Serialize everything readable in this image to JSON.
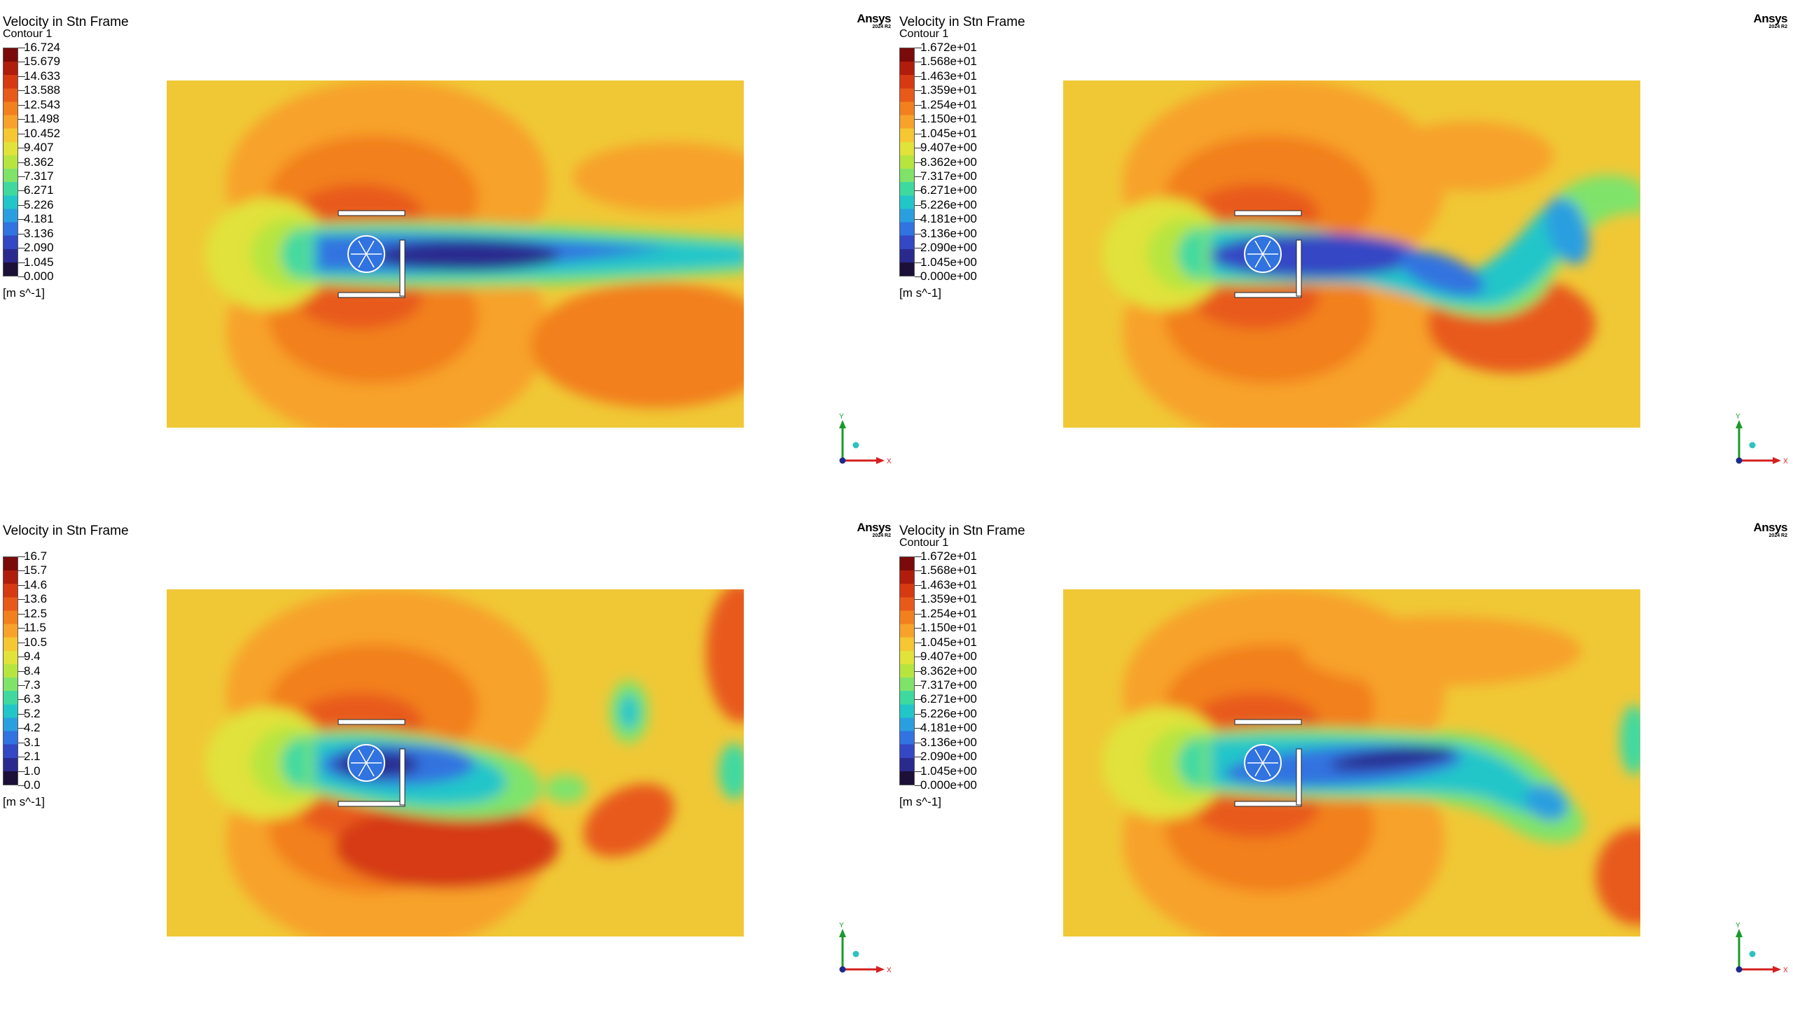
{
  "panels": [
    {
      "title": "Velocity in Stn Frame",
      "subtitle": "Contour 1",
      "legend_labels": [
        "16.724",
        "15.679",
        "14.633",
        "13.588",
        "12.543",
        "11.498",
        "10.452",
        "9.407",
        "8.362",
        "7.317",
        "6.271",
        "5.226",
        "4.181",
        "3.136",
        "2.090",
        "1.045",
        "0.000"
      ],
      "units": "[m s^-1]",
      "logo": {
        "name": "Ansys",
        "version": "2024 R2"
      },
      "axes": {
        "y": "Y",
        "x": "X"
      },
      "wake": "straight"
    },
    {
      "title": "Velocity in Stn Frame",
      "subtitle": "Contour 1",
      "legend_labels": [
        "1.672e+01",
        "1.568e+01",
        "1.463e+01",
        "1.359e+01",
        "1.254e+01",
        "1.150e+01",
        "1.045e+01",
        "9.407e+00",
        "8.362e+00",
        "7.317e+00",
        "6.271e+00",
        "5.226e+00",
        "4.181e+00",
        "3.136e+00",
        "2.090e+00",
        "1.045e+00",
        "0.000e+00"
      ],
      "units": "[m s^-1]",
      "logo": {
        "name": "Ansys",
        "version": "2024 R2"
      },
      "axes": {
        "y": "Y",
        "x": "X"
      },
      "wake": "wavy"
    },
    {
      "title": "Velocity in Stn Frame",
      "subtitle": "",
      "legend_labels": [
        "16.7",
        "15.7",
        "14.6",
        "13.6",
        "12.5",
        "11.5",
        "10.5",
        "9.4",
        "8.4",
        "7.3",
        "6.3",
        "5.2",
        "4.2",
        "3.1",
        "2.1",
        "1.0",
        "0.0"
      ],
      "units": "[m s^-1]",
      "logo": {
        "name": "Ansys",
        "version": "2024 R2"
      },
      "axes": {
        "y": "Y",
        "x": "X"
      },
      "wake": "vortex"
    },
    {
      "title": "Velocity in Stn Frame",
      "subtitle": "Contour 1",
      "legend_labels": [
        "1.672e+01",
        "1.568e+01",
        "1.463e+01",
        "1.359e+01",
        "1.254e+01",
        "1.150e+01",
        "1.045e+01",
        "9.407e+00",
        "8.362e+00",
        "7.317e+00",
        "6.271e+00",
        "5.226e+00",
        "4.181e+00",
        "3.136e+00",
        "2.090e+00",
        "1.045e+00",
        "0.000e+00"
      ],
      "units": "[m s^-1]",
      "logo": {
        "name": "Ansys",
        "version": "2024 R2"
      },
      "axes": {
        "y": "Y",
        "x": "X"
      },
      "wake": "shed"
    }
  ],
  "colors": {
    "colormap": [
      "#7b0a0a",
      "#b01d0c",
      "#d63a12",
      "#e85a1a",
      "#f2801f",
      "#f7a22b",
      "#f4c733",
      "#e1e23a",
      "#b6e540",
      "#7fe36a",
      "#3fd9a0",
      "#22c6c9",
      "#2a9fe0",
      "#3173e0",
      "#3447c4",
      "#2a2a8e",
      "#1c1038"
    ],
    "freestream": "#f0c836",
    "bluff_outline": "#ffffff"
  }
}
